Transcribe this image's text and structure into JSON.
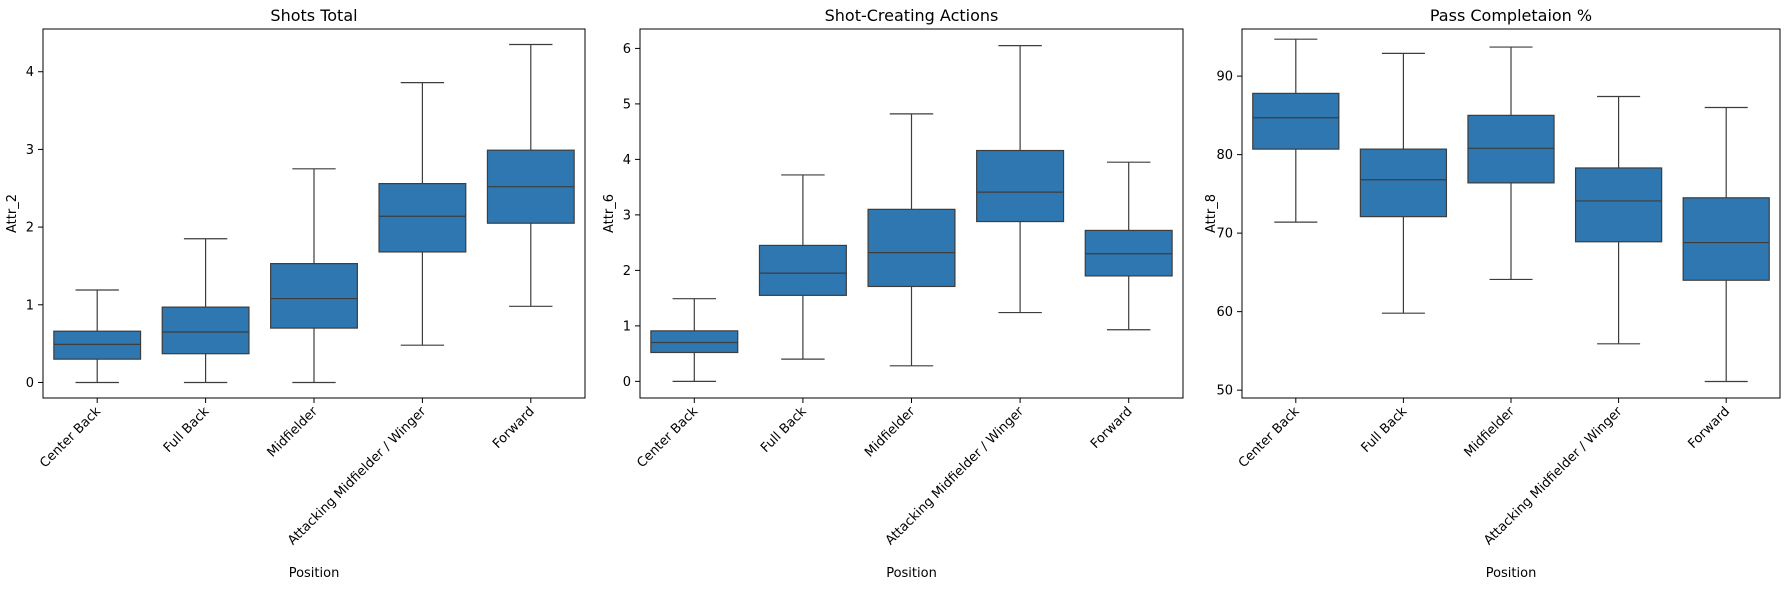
{
  "chart_data": [
    {
      "type": "box",
      "title": "Shots Total",
      "xlabel": "Position",
      "ylabel": "Attr_2",
      "categories": [
        "Center Back",
        "Full Back",
        "Midfielder",
        "Attacking Midfielder / Winger",
        "Forward"
      ],
      "ylim": [
        -0.2,
        4.55
      ],
      "yticks": [
        0,
        1,
        2,
        3,
        4
      ],
      "boxes": [
        {
          "whisker_low": 0.0,
          "q1": 0.3,
          "median": 0.49,
          "q3": 0.66,
          "whisker_high": 1.19
        },
        {
          "whisker_low": 0.0,
          "q1": 0.37,
          "median": 0.65,
          "q3": 0.97,
          "whisker_high": 1.85
        },
        {
          "whisker_low": 0.0,
          "q1": 0.7,
          "median": 1.08,
          "q3": 1.53,
          "whisker_high": 2.75
        },
        {
          "whisker_low": 0.48,
          "q1": 1.68,
          "median": 2.14,
          "q3": 2.56,
          "whisker_high": 3.86
        },
        {
          "whisker_low": 0.98,
          "q1": 2.05,
          "median": 2.52,
          "q3": 2.99,
          "whisker_high": 4.35
        }
      ]
    },
    {
      "type": "box",
      "title": "Shot-Creating Actions",
      "xlabel": "Position",
      "ylabel": "Attr_6",
      "categories": [
        "Center Back",
        "Full Back",
        "Midfielder",
        "Attacking Midfielder / Winger",
        "Forward"
      ],
      "ylim": [
        -0.3,
        6.35
      ],
      "yticks": [
        0,
        1,
        2,
        3,
        4,
        5,
        6
      ],
      "boxes": [
        {
          "whisker_low": 0.0,
          "q1": 0.52,
          "median": 0.7,
          "q3": 0.91,
          "whisker_high": 1.49
        },
        {
          "whisker_low": 0.4,
          "q1": 1.55,
          "median": 1.95,
          "q3": 2.45,
          "whisker_high": 3.72
        },
        {
          "whisker_low": 0.28,
          "q1": 1.71,
          "median": 2.32,
          "q3": 3.1,
          "whisker_high": 4.82
        },
        {
          "whisker_low": 1.24,
          "q1": 2.88,
          "median": 3.41,
          "q3": 4.16,
          "whisker_high": 6.05
        },
        {
          "whisker_low": 0.93,
          "q1": 1.9,
          "median": 2.3,
          "q3": 2.72,
          "whisker_high": 3.95
        }
      ]
    },
    {
      "type": "box",
      "title": "Pass Completaion %",
      "xlabel": "Position",
      "ylabel": "Attr_8",
      "categories": [
        "Center Back",
        "Full Back",
        "Midfielder",
        "Attacking Midfielder / Winger",
        "Forward"
      ],
      "ylim": [
        49.0,
        96.0
      ],
      "yticks": [
        50,
        60,
        70,
        80,
        90
      ],
      "boxes": [
        {
          "whisker_low": 71.4,
          "q1": 80.7,
          "median": 84.7,
          "q3": 87.8,
          "whisker_high": 94.7
        },
        {
          "whisker_low": 59.8,
          "q1": 72.1,
          "median": 76.8,
          "q3": 80.7,
          "whisker_high": 92.9
        },
        {
          "whisker_low": 64.1,
          "q1": 76.4,
          "median": 80.8,
          "q3": 85.0,
          "whisker_high": 93.7
        },
        {
          "whisker_low": 55.9,
          "q1": 68.9,
          "median": 74.1,
          "q3": 78.3,
          "whisker_high": 87.4
        },
        {
          "whisker_low": 51.1,
          "q1": 64.0,
          "median": 68.8,
          "q3": 74.5,
          "whisker_high": 86.0
        }
      ]
    }
  ],
  "colors": {
    "box_fill": "#2f77b1",
    "box_line": "#3d3d3d",
    "axis": "#000000",
    "background": "#ffffff"
  }
}
